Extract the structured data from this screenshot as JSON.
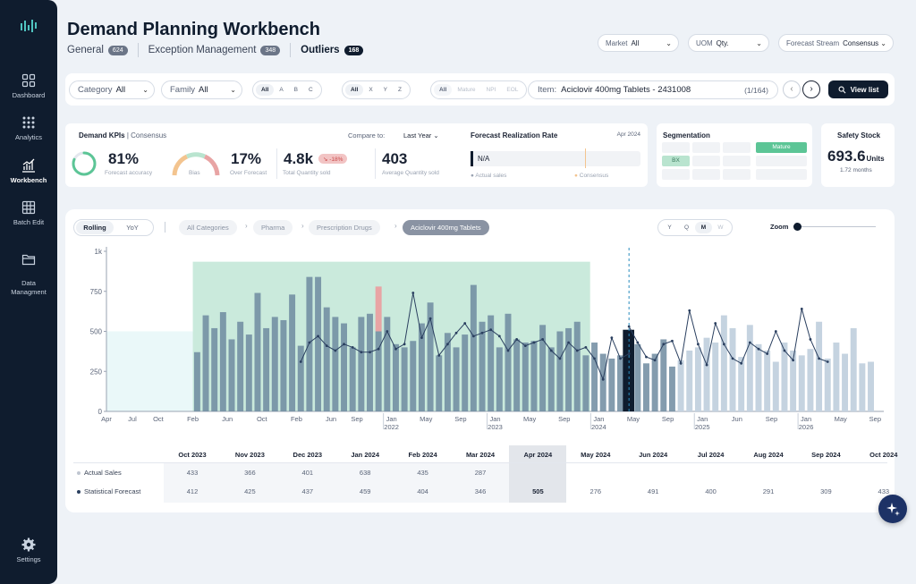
{
  "sidebar": {
    "items": [
      {
        "label": "Dashboard",
        "icon": "dashboard-icon"
      },
      {
        "label": "Analytics",
        "icon": "analytics-icon"
      },
      {
        "label": "Workbench",
        "icon": "workbench-icon",
        "active": true
      },
      {
        "label": "Batch Edit",
        "icon": "batch-edit-icon"
      },
      {
        "label": "Data\nManagment",
        "icon": "data-management-icon"
      }
    ],
    "settings": "Settings"
  },
  "header": {
    "title": "Demand Planning Workbench",
    "tabs": [
      {
        "label": "General",
        "count": "624"
      },
      {
        "label": "Exception Management",
        "count": "348"
      },
      {
        "label": "Outliers",
        "count": "168",
        "active": true
      }
    ],
    "dropdowns": [
      {
        "label": "Market",
        "value": "All"
      },
      {
        "label": "UOM",
        "value": "Qty."
      },
      {
        "label": "Forecast Stream",
        "value": "Consensus"
      }
    ]
  },
  "filters": {
    "category": {
      "label": "Category",
      "value": "All"
    },
    "family": {
      "label": "Family",
      "value": "All"
    },
    "abc": [
      "All",
      "A",
      "B",
      "C"
    ],
    "xyz": [
      "All",
      "X",
      "Y",
      "Z"
    ],
    "lifecycle": [
      "All",
      "Mature",
      "NPI",
      "EOL"
    ],
    "item": {
      "label": "Item:",
      "value": "Aciclovir 400mg Tablets - 2431008",
      "counter": "(1/164)"
    },
    "view_list": "View list"
  },
  "kpis": {
    "title": "Demand KPIs",
    "stream": "Consensus",
    "compare_label": "Compare to:",
    "compare_value": "Last Year",
    "forecast_accuracy": {
      "value": "81%",
      "label": "Forecast accuracy",
      "fraction": 0.81
    },
    "bias": {
      "label": "Bias"
    },
    "over_forecast": {
      "value": "17%",
      "label": "Over Forecast"
    },
    "total_quantity": {
      "value": "4.8k",
      "label": "Total Quantity sold",
      "delta": "-18%"
    },
    "avg_quantity": {
      "value": "403",
      "label": "Average Quantity sold"
    }
  },
  "realization": {
    "title": "Forecast Realization Rate",
    "date": "Apr 2024",
    "value": "N/A",
    "legend_actual": "Actual sales",
    "legend_consensus": "Consensus"
  },
  "segmentation": {
    "title": "Segmentation",
    "xyz_badge": "BX",
    "lifecycle_badge": "Mature"
  },
  "safety_stock": {
    "title": "Safety Stock",
    "value": "693.6",
    "unit": "Units",
    "months": "1.72 months"
  },
  "chart_controls": {
    "toggle": [
      "Rolling",
      "YoY"
    ],
    "breadcrumb": [
      "All Categories",
      "Pharma",
      "Prescription Drugs",
      "Aciclovir 400mg Tablets"
    ],
    "periods": [
      "Y",
      "Q",
      "M",
      "W"
    ],
    "zoom_label": "Zoom"
  },
  "chart_data": {
    "type": "bar",
    "yticks": [
      "0",
      "250",
      "500",
      "750",
      "1k"
    ],
    "ylim": [
      0,
      1000
    ],
    "xtick_labels": [
      {
        "m": 0,
        "t": "Apr"
      },
      {
        "m": 3,
        "t": "Jul"
      },
      {
        "m": 6,
        "t": "Oct"
      },
      {
        "m": 10,
        "t": "Feb"
      },
      {
        "m": 14,
        "t": "Jun"
      },
      {
        "m": 18,
        "t": "Oct"
      },
      {
        "m": 22,
        "t": "Feb"
      },
      {
        "m": 26,
        "t": "Jun"
      },
      {
        "m": 29,
        "t": "Sep"
      },
      {
        "m": 33,
        "t": "Jan",
        "y": "2022"
      },
      {
        "m": 37,
        "t": "May"
      },
      {
        "m": 41,
        "t": "Sep"
      },
      {
        "m": 45,
        "t": "Jan",
        "y": "2023"
      },
      {
        "m": 49,
        "t": "May"
      },
      {
        "m": 53,
        "t": "Sep"
      },
      {
        "m": 57,
        "t": "Jan",
        "y": "2024"
      },
      {
        "m": 61,
        "t": "May"
      },
      {
        "m": 65,
        "t": "Sep"
      },
      {
        "m": 69,
        "t": "Jan",
        "y": "2025"
      },
      {
        "m": 73,
        "t": "Jun"
      },
      {
        "m": 77,
        "t": "Sep"
      },
      {
        "m": 81,
        "t": "Jan",
        "y": "2026"
      },
      {
        "m": 85,
        "t": "May"
      },
      {
        "m": 89,
        "t": "Sep"
      }
    ],
    "history_start": 10,
    "actuals": [
      370,
      600,
      520,
      620,
      450,
      560,
      480,
      740,
      520,
      590,
      570,
      730,
      410,
      840,
      840,
      650,
      590,
      550,
      400,
      590,
      610,
      500,
      590,
      420,
      400,
      440,
      550,
      680,
      350,
      490,
      400,
      480,
      790,
      560,
      600,
      400,
      610,
      450,
      430,
      440,
      540,
      400,
      500,
      520,
      560,
      350,
      430,
      360,
      330,
      350,
      430,
      420,
      300,
      360,
      450,
      280
    ],
    "spike": {
      "m": 31,
      "value": 280
    },
    "statistical_forecast": [
      null,
      null,
      null,
      null,
      null,
      null,
      null,
      null,
      null,
      null,
      null,
      null,
      null,
      null,
      null,
      null,
      null,
      null,
      null,
      null,
      null,
      null,
      310,
      430,
      470,
      410,
      380,
      420,
      400,
      370,
      370,
      390,
      500,
      390,
      420,
      740,
      460,
      580,
      350,
      420,
      490,
      550,
      470,
      490,
      510,
      470,
      380,
      450,
      410,
      430,
      450,
      380,
      330,
      430,
      380,
      400,
      330,
      200,
      460,
      330,
      360
    ],
    "future_start": 66,
    "future_values": [
      320,
      380,
      400,
      460,
      430,
      600,
      520,
      340,
      540,
      420,
      380,
      310,
      430,
      380,
      350,
      390,
      560,
      330,
      430,
      360,
      520,
      300,
      310
    ],
    "forecast_line_future": [
      530,
      430,
      340,
      320,
      420,
      440,
      300,
      630,
      420,
      290,
      550,
      420,
      330,
      300,
      430,
      390,
      360,
      500,
      380,
      320,
      640,
      450,
      330,
      310
    ],
    "highlight_range": [
      10,
      56
    ],
    "current_month": 60
  },
  "table": {
    "columns": [
      "Oct 2023",
      "Nov 2023",
      "Dec 2023",
      "Jan 2024",
      "Feb 2024",
      "Mar 2024",
      "Apr 2024",
      "May 2024",
      "Jun 2024",
      "Jul 2024",
      "Aug 2024",
      "Sep 2024",
      "Oct 2024"
    ],
    "rows": [
      {
        "label": "Actual Sales",
        "values": [
          "433",
          "366",
          "401",
          "638",
          "435",
          "287",
          "",
          "",
          "",
          "",
          "",
          "",
          ""
        ]
      },
      {
        "label": "Statistical Forecast",
        "values": [
          "412",
          "425",
          "437",
          "459",
          "404",
          "346",
          "505",
          "276",
          "491",
          "400",
          "291",
          "309",
          "433"
        ]
      }
    ],
    "highlight_col": 6
  },
  "colors": {
    "navy": "#0f1c2e",
    "bar_hist": "#6e8ba0",
    "bar_future": "#c5d3e0",
    "highlight": "#9fd8bf",
    "forecast_line": "#2a3f5f"
  }
}
